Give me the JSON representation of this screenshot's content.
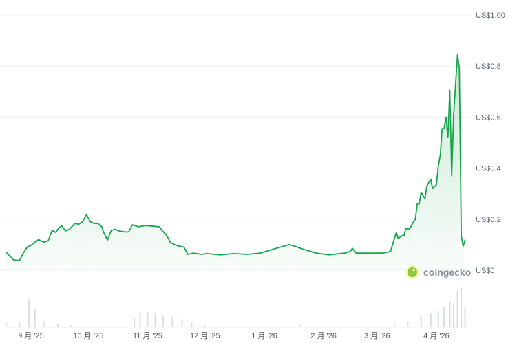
{
  "chart_data": {
    "type": "area",
    "currency_prefix": "US$",
    "y_ticks": [
      {
        "value": 0,
        "label": "US$0"
      },
      {
        "value": 0.2,
        "label": "US$0.2"
      },
      {
        "value": 0.4,
        "label": "US$0.4"
      },
      {
        "value": 0.6,
        "label": "US$0.6"
      },
      {
        "value": 0.8,
        "label": "US$0.8"
      },
      {
        "value": 1.0,
        "label": "US$1.00"
      }
    ],
    "ylim": [
      0,
      1.0
    ],
    "x_ticks": [
      {
        "date": "2025-09-01",
        "label": "9 月 '25"
      },
      {
        "date": "2025-10-01",
        "label": "10 月 '25"
      },
      {
        "date": "2025-11-01",
        "label": "11 月 '25"
      },
      {
        "date": "2025-12-01",
        "label": "12 月 '25"
      },
      {
        "date": "2026-01-01",
        "label": "1 月 '26"
      },
      {
        "date": "2026-02-01",
        "label": "2 月 '26"
      },
      {
        "date": "2026-03-01",
        "label": "3 月 '26"
      },
      {
        "date": "2026-04-01",
        "label": "4 月 '26"
      }
    ],
    "grid": true,
    "line_color": "#16a34a",
    "fill_color": "#16a34a",
    "watermark": "coingecko",
    "series": [
      {
        "points": [
          [
            "2025-08-19",
            0.07
          ],
          [
            "2025-08-23",
            0.04
          ],
          [
            "2025-08-26",
            0.038
          ],
          [
            "2025-08-28",
            0.067
          ],
          [
            "2025-08-30",
            0.09
          ],
          [
            "2025-09-01",
            0.097
          ],
          [
            "2025-09-03",
            0.11
          ],
          [
            "2025-09-05",
            0.12
          ],
          [
            "2025-09-06",
            0.115
          ],
          [
            "2025-09-08",
            0.11
          ],
          [
            "2025-09-10",
            0.115
          ],
          [
            "2025-09-12",
            0.156
          ],
          [
            "2025-09-14",
            0.148
          ],
          [
            "2025-09-15",
            0.16
          ],
          [
            "2025-09-17",
            0.175
          ],
          [
            "2025-09-19",
            0.154
          ],
          [
            "2025-09-21",
            0.16
          ],
          [
            "2025-09-23",
            0.175
          ],
          [
            "2025-09-24",
            0.183
          ],
          [
            "2025-09-26",
            0.18
          ],
          [
            "2025-09-28",
            0.19
          ],
          [
            "2025-09-30",
            0.218
          ],
          [
            "2025-10-02",
            0.19
          ],
          [
            "2025-10-04",
            0.183
          ],
          [
            "2025-10-06",
            0.183
          ],
          [
            "2025-10-08",
            0.17
          ],
          [
            "2025-10-09",
            0.148
          ],
          [
            "2025-10-11",
            0.118
          ],
          [
            "2025-10-13",
            0.156
          ],
          [
            "2025-10-15",
            0.16
          ],
          [
            "2025-10-17",
            0.154
          ],
          [
            "2025-10-20",
            0.15
          ],
          [
            "2025-10-22",
            0.15
          ],
          [
            "2025-10-24",
            0.178
          ],
          [
            "2025-10-27",
            0.17
          ],
          [
            "2025-10-31",
            0.175
          ],
          [
            "2025-11-04",
            0.172
          ],
          [
            "2025-11-07",
            0.17
          ],
          [
            "2025-11-11",
            0.135
          ],
          [
            "2025-11-13",
            0.108
          ],
          [
            "2025-11-16",
            0.097
          ],
          [
            "2025-11-20",
            0.09
          ],
          [
            "2025-11-22",
            0.062
          ],
          [
            "2025-11-25",
            0.067
          ],
          [
            "2025-11-29",
            0.062
          ],
          [
            "2025-12-02",
            0.065
          ],
          [
            "2025-12-09",
            0.06
          ],
          [
            "2025-12-16",
            0.065
          ],
          [
            "2025-12-23",
            0.062
          ],
          [
            "2025-12-30",
            0.067
          ],
          [
            "2026-01-06",
            0.083
          ],
          [
            "2026-01-14",
            0.1
          ],
          [
            "2026-01-17",
            0.094
          ],
          [
            "2026-01-21",
            0.083
          ],
          [
            "2026-01-28",
            0.067
          ],
          [
            "2026-02-04",
            0.06
          ],
          [
            "2026-02-12",
            0.067
          ],
          [
            "2026-02-15",
            0.073
          ],
          [
            "2026-02-16",
            0.086
          ],
          [
            "2026-02-18",
            0.067
          ],
          [
            "2026-02-25",
            0.067
          ],
          [
            "2026-03-04",
            0.067
          ],
          [
            "2026-03-08",
            0.073
          ],
          [
            "2026-03-10",
            0.124
          ],
          [
            "2026-03-11",
            0.148
          ],
          [
            "2026-03-12",
            0.124
          ],
          [
            "2026-03-14",
            0.135
          ],
          [
            "2026-03-15",
            0.135
          ],
          [
            "2026-03-16",
            0.162
          ],
          [
            "2026-03-18",
            0.162
          ],
          [
            "2026-03-20",
            0.19
          ],
          [
            "2026-03-21",
            0.2
          ],
          [
            "2026-03-22",
            0.26
          ],
          [
            "2026-03-23",
            0.26
          ],
          [
            "2026-03-24",
            0.305
          ],
          [
            "2026-03-26",
            0.28
          ],
          [
            "2026-03-27",
            0.33
          ],
          [
            "2026-03-29",
            0.357
          ],
          [
            "2026-03-30",
            0.32
          ],
          [
            "2026-04-01",
            0.335
          ],
          [
            "2026-04-02",
            0.41
          ],
          [
            "2026-04-03",
            0.45
          ],
          [
            "2026-04-04",
            0.555
          ],
          [
            "2026-04-05",
            0.555
          ],
          [
            "2026-04-06",
            0.6
          ],
          [
            "2026-04-07",
            0.52
          ],
          [
            "2026-04-08",
            0.705
          ],
          [
            "2026-04-09",
            0.37
          ],
          [
            "2026-04-10",
            0.61
          ],
          [
            "2026-04-12",
            0.845
          ],
          [
            "2026-04-13",
            0.79
          ],
          [
            "2026-04-14",
            0.135
          ],
          [
            "2026-04-15",
            0.094
          ],
          [
            "2026-04-16",
            0.12
          ]
        ]
      }
    ],
    "volume_relative": [
      [
        "2025-08-19",
        0.1
      ],
      [
        "2025-08-26",
        0.12
      ],
      [
        "2025-08-31",
        0.7
      ],
      [
        "2025-09-03",
        0.45
      ],
      [
        "2025-09-08",
        0.15
      ],
      [
        "2025-09-15",
        0.08
      ],
      [
        "2025-09-22",
        0.05
      ],
      [
        "2025-09-29",
        0.03
      ],
      [
        "2025-10-06",
        0.02
      ],
      [
        "2025-10-13",
        0.02
      ],
      [
        "2025-10-20",
        0.03
      ],
      [
        "2025-10-25",
        0.22
      ],
      [
        "2025-10-28",
        0.35
      ],
      [
        "2025-11-01",
        0.38
      ],
      [
        "2025-11-05",
        0.36
      ],
      [
        "2025-11-09",
        0.3
      ],
      [
        "2025-11-14",
        0.26
      ],
      [
        "2025-11-19",
        0.2
      ],
      [
        "2025-11-24",
        0.1
      ],
      [
        "2025-12-01",
        0.04
      ],
      [
        "2025-12-10",
        0.02
      ],
      [
        "2025-12-20",
        0.02
      ],
      [
        "2025-12-31",
        0.03
      ],
      [
        "2026-01-10",
        0.02
      ],
      [
        "2026-01-20",
        0.06
      ],
      [
        "2026-01-31",
        0.03
      ],
      [
        "2026-02-10",
        0.02
      ],
      [
        "2026-02-20",
        0.02
      ],
      [
        "2026-03-01",
        0.02
      ],
      [
        "2026-03-10",
        0.08
      ],
      [
        "2026-03-17",
        0.15
      ],
      [
        "2026-03-24",
        0.3
      ],
      [
        "2026-03-29",
        0.35
      ],
      [
        "2026-04-02",
        0.42
      ],
      [
        "2026-04-05",
        0.5
      ],
      [
        "2026-04-08",
        0.65
      ],
      [
        "2026-04-10",
        0.55
      ],
      [
        "2026-04-12",
        0.9
      ],
      [
        "2026-04-14",
        1.0
      ],
      [
        "2026-04-16",
        0.5
      ]
    ]
  }
}
